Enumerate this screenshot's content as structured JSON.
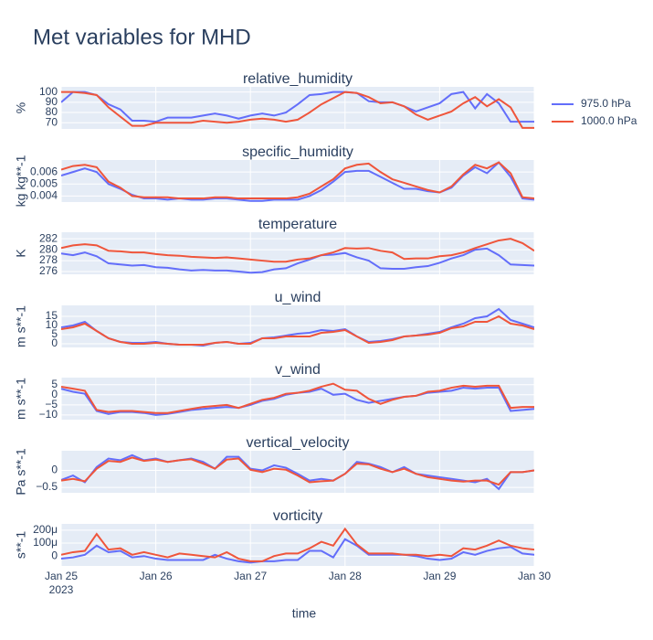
{
  "chart_data": {
    "type": "line",
    "title": "Met variables for MHD",
    "xlabel": "time",
    "grid": true,
    "legend": "right",
    "x": [
      "2023-01-25T00:00",
      "2023-01-25T03:00",
      "2023-01-25T06:00",
      "2023-01-25T09:00",
      "2023-01-25T12:00",
      "2023-01-25T15:00",
      "2023-01-25T18:00",
      "2023-01-25T21:00",
      "2023-01-26T00:00",
      "2023-01-26T03:00",
      "2023-01-26T06:00",
      "2023-01-26T09:00",
      "2023-01-26T12:00",
      "2023-01-26T15:00",
      "2023-01-26T18:00",
      "2023-01-26T21:00",
      "2023-01-27T00:00",
      "2023-01-27T03:00",
      "2023-01-27T06:00",
      "2023-01-27T09:00",
      "2023-01-27T12:00",
      "2023-01-27T15:00",
      "2023-01-27T18:00",
      "2023-01-27T21:00",
      "2023-01-28T00:00",
      "2023-01-28T03:00",
      "2023-01-28T06:00",
      "2023-01-28T09:00",
      "2023-01-28T12:00",
      "2023-01-28T15:00",
      "2023-01-28T18:00",
      "2023-01-28T21:00",
      "2023-01-29T00:00",
      "2023-01-29T03:00",
      "2023-01-29T06:00",
      "2023-01-29T09:00",
      "2023-01-29T12:00",
      "2023-01-29T15:00",
      "2023-01-29T18:00",
      "2023-01-29T21:00",
      "2023-01-30T00:00"
    ],
    "xlim": [
      "2023-01-25T00:00",
      "2023-01-30T00:00"
    ],
    "xticks": [
      {
        "value": "2023-01-25T00:00",
        "label": "Jan 25\n2023"
      },
      {
        "value": "2023-01-26T00:00",
        "label": "Jan 26"
      },
      {
        "value": "2023-01-27T00:00",
        "label": "Jan 27"
      },
      {
        "value": "2023-01-28T00:00",
        "label": "Jan 28"
      },
      {
        "value": "2023-01-29T00:00",
        "label": "Jan 29"
      },
      {
        "value": "2023-01-30T00:00",
        "label": "Jan 30"
      }
    ],
    "series": [
      {
        "name": "975.0 hPa",
        "color": "#636efa"
      },
      {
        "name": "1000.0 hPa",
        "color": "#ef553b"
      }
    ],
    "subplots": [
      {
        "title": "relative_humidity",
        "ylabel": "%",
        "ylim": [
          64,
          105
        ],
        "yticks": [
          70,
          80,
          90,
          100
        ],
        "values": [
          [
            90,
            100,
            100,
            97,
            88,
            83,
            72,
            72,
            71,
            75,
            75,
            75,
            77,
            79,
            77,
            74,
            77,
            79,
            77,
            80,
            88,
            97,
            98,
            100,
            100,
            99,
            91,
            90,
            90,
            86,
            81,
            85,
            89,
            98,
            100,
            84,
            98,
            89,
            71,
            71,
            71
          ],
          [
            100,
            100,
            99,
            97,
            85,
            76,
            67,
            67,
            70,
            70,
            70,
            70,
            72,
            71,
            70,
            71,
            73,
            74,
            73,
            71,
            73,
            80,
            88,
            94,
            100,
            99,
            95,
            89,
            90,
            86,
            78,
            73,
            77,
            81,
            89,
            95,
            86,
            93,
            85,
            65,
            65
          ]
        ]
      },
      {
        "title": "specific_humidity",
        "ylabel": "kg kg**-1",
        "ylim": [
          0.0035,
          0.007
        ],
        "yticks": [
          0.004,
          0.005,
          0.006
        ],
        "values": [
          [
            0.0057,
            0.006,
            0.0063,
            0.006,
            0.005,
            0.0046,
            0.0041,
            0.0038,
            0.0038,
            0.0037,
            0.0038,
            0.0037,
            0.0037,
            0.0038,
            0.0038,
            0.0037,
            0.0036,
            0.0036,
            0.0037,
            0.0037,
            0.0037,
            0.004,
            0.0045,
            0.0052,
            0.006,
            0.0061,
            0.0061,
            0.0056,
            0.0051,
            0.0046,
            0.0046,
            0.0044,
            0.0043,
            0.0047,
            0.0057,
            0.0064,
            0.0059,
            0.0068,
            0.0056,
            0.0038,
            0.0037
          ],
          [
            0.0062,
            0.0065,
            0.0066,
            0.0064,
            0.0052,
            0.0047,
            0.004,
            0.0039,
            0.0039,
            0.0039,
            0.0038,
            0.0038,
            0.0038,
            0.0039,
            0.0039,
            0.0038,
            0.0038,
            0.0038,
            0.0038,
            0.0038,
            0.0039,
            0.0042,
            0.0048,
            0.0054,
            0.0063,
            0.0066,
            0.0067,
            0.006,
            0.0054,
            0.0051,
            0.0048,
            0.0045,
            0.0043,
            0.0048,
            0.0058,
            0.0066,
            0.0063,
            0.0068,
            0.0059,
            0.0039,
            0.0038
          ]
        ]
      },
      {
        "title": "temperature",
        "ylabel": "K",
        "ylim": [
          275.5,
          283.2
        ],
        "yticks": [
          276,
          278,
          280,
          282
        ],
        "values": [
          [
            279.3,
            279,
            279.5,
            278.8,
            277.5,
            277.3,
            277.1,
            277.2,
            276.8,
            276.7,
            276.4,
            276.2,
            276.3,
            276.2,
            276.2,
            276,
            275.8,
            275.9,
            276.4,
            276.6,
            277.5,
            278.2,
            279,
            279.1,
            279.4,
            278.6,
            278,
            276.6,
            276.5,
            276.5,
            276.8,
            277,
            277.6,
            278.4,
            279,
            280,
            280.2,
            279,
            277.3,
            277.2,
            277.1
          ],
          [
            280.3,
            280.8,
            281,
            280.8,
            279.8,
            279.7,
            279.5,
            279.5,
            279.2,
            279,
            278.9,
            278.7,
            278.6,
            278.5,
            278.6,
            278.4,
            278.2,
            278,
            277.8,
            277.8,
            278.2,
            278.4,
            279,
            279.5,
            280.3,
            280.2,
            280.3,
            279.8,
            279.5,
            278.3,
            278.4,
            278.4,
            278.8,
            279,
            279.5,
            280.3,
            281,
            281.7,
            282,
            281.2,
            279.8
          ]
        ]
      },
      {
        "title": "u_wind",
        "ylabel": "m s**-1",
        "ylim": [
          -2,
          21
        ],
        "yticks": [
          0,
          5,
          10,
          15
        ],
        "values": [
          [
            9,
            10,
            12,
            7,
            3,
            1,
            0.5,
            0.5,
            1,
            0,
            -0.5,
            -0.5,
            -1,
            0.5,
            1,
            0,
            0.5,
            3,
            3.5,
            4.5,
            5.5,
            6,
            7.5,
            7,
            8,
            4,
            1,
            1.5,
            2.5,
            4,
            4.5,
            5.5,
            6.5,
            9,
            11,
            14,
            15,
            19,
            13,
            11,
            9
          ],
          [
            8,
            9,
            11,
            7,
            3,
            1,
            0,
            0,
            0.5,
            0,
            -0.5,
            -0.5,
            -0.5,
            0.5,
            1,
            0,
            0,
            3,
            3,
            4,
            4,
            4,
            6,
            6.5,
            7.5,
            4,
            0.5,
            1,
            2,
            4,
            4.5,
            5,
            6,
            8.5,
            9.5,
            12,
            12,
            15,
            11,
            10,
            8
          ]
        ]
      },
      {
        "title": "v_wind",
        "ylabel": "m s**-1",
        "ylim": [
          -12.3,
          8.5
        ],
        "yticks": [
          5,
          0,
          {
            "value": -5,
            "label": "−5"
          },
          {
            "value": -10,
            "label": "−10"
          }
        ],
        "values": [
          [
            3,
            1.5,
            0.5,
            -8,
            -9.5,
            -8.5,
            -8.5,
            -9,
            -10,
            -9.5,
            -8.5,
            -7.5,
            -7,
            -6.5,
            -6,
            -6.5,
            -5,
            -3,
            -2,
            0,
            1,
            1.5,
            3,
            0,
            0.5,
            -2.5,
            -4,
            -3,
            -2,
            -1,
            -0.5,
            1,
            1.5,
            2,
            3.5,
            3,
            3.5,
            3.5,
            -8,
            -7.5,
            -7
          ],
          [
            4,
            3,
            2,
            -7.5,
            -8.5,
            -8,
            -8,
            -8.5,
            -9,
            -9,
            -8,
            -7,
            -6,
            -5.5,
            -5,
            -6.5,
            -4.5,
            -2.5,
            -1.5,
            0.5,
            1,
            2,
            4,
            5.5,
            2.5,
            2,
            -2,
            -4.5,
            -2.5,
            -1,
            -0.5,
            1.5,
            2,
            3.5,
            4.5,
            4,
            4.5,
            4.5,
            -6.5,
            -6,
            -6
          ]
        ]
      },
      {
        "title": "vertical_velocity",
        "ylabel": "Pa s**-1",
        "ylim": [
          -0.66,
          0.58
        ],
        "yticks": [
          0,
          {
            "value": -0.5,
            "label": "−0.5"
          }
        ],
        "values": [
          [
            -0.28,
            -0.15,
            -0.35,
            0.1,
            0.35,
            0.3,
            0.45,
            0.3,
            0.35,
            0.25,
            0.3,
            0.35,
            0.25,
            0.05,
            0.4,
            0.4,
            0.05,
            0,
            0.15,
            0.08,
            -0.1,
            -0.3,
            -0.25,
            -0.3,
            -0.1,
            0.25,
            0.2,
            0.1,
            -0.05,
            0.1,
            -0.1,
            -0.15,
            -0.2,
            -0.25,
            -0.3,
            -0.35,
            -0.25,
            -0.55,
            -0.05,
            -0.05,
            0
          ],
          [
            -0.3,
            -0.25,
            -0.32,
            0.05,
            0.28,
            0.25,
            0.38,
            0.28,
            0.32,
            0.25,
            0.3,
            0.33,
            0.2,
            0.05,
            0.32,
            0.35,
            0.02,
            -0.05,
            0.05,
            0.02,
            -0.15,
            -0.35,
            -0.32,
            -0.3,
            -0.1,
            0.2,
            0.18,
            0.05,
            -0.05,
            0.05,
            -0.1,
            -0.2,
            -0.25,
            -0.3,
            -0.33,
            -0.3,
            -0.3,
            -0.42,
            -0.05,
            -0.05,
            0
          ]
        ]
      },
      {
        "title": "vorticity",
        "ylabel": "s**-1",
        "ylim": [
          -7.6e-05,
          0.000248
        ],
        "yticks": [
          0,
          {
            "value": 0.0001,
            "label": "100μ"
          },
          {
            "value": 0.0002,
            "label": "200μ"
          }
        ],
        "values": [
          [
            -2e-05,
            -1e-05,
            1e-05,
            8e-05,
            3e-05,
            4e-05,
            -1e-05,
            0,
            -2e-05,
            -3e-05,
            -3e-05,
            -3e-05,
            -3e-05,
            1e-05,
            -2e-05,
            -4e-05,
            -5e-05,
            -4e-05,
            -4e-05,
            -3e-05,
            -3e-05,
            4e-05,
            4e-05,
            -1e-05,
            0.00013,
            8e-05,
            1e-05,
            1e-05,
            1e-05,
            1e-05,
            0,
            -2e-05,
            -3e-05,
            -2e-05,
            3e-05,
            1e-05,
            4e-05,
            6e-05,
            7e-05,
            2e-05,
            1e-05
          ],
          [
            1e-05,
            3e-05,
            4e-05,
            0.00017,
            5e-05,
            6e-05,
            1e-05,
            3e-05,
            1e-05,
            -1e-05,
            2e-05,
            1e-05,
            0,
            -1e-05,
            3e-05,
            -2e-05,
            -4e-05,
            -4e-05,
            0,
            2e-05,
            2e-05,
            6e-05,
            0.00011,
            8e-05,
            0.00021,
            9e-05,
            2e-05,
            2e-05,
            2e-05,
            1e-05,
            1e-05,
            0,
            1e-05,
            0,
            6e-05,
            5e-05,
            8e-05,
            0.00012,
            8e-05,
            6e-05,
            5e-05
          ]
        ]
      }
    ]
  }
}
